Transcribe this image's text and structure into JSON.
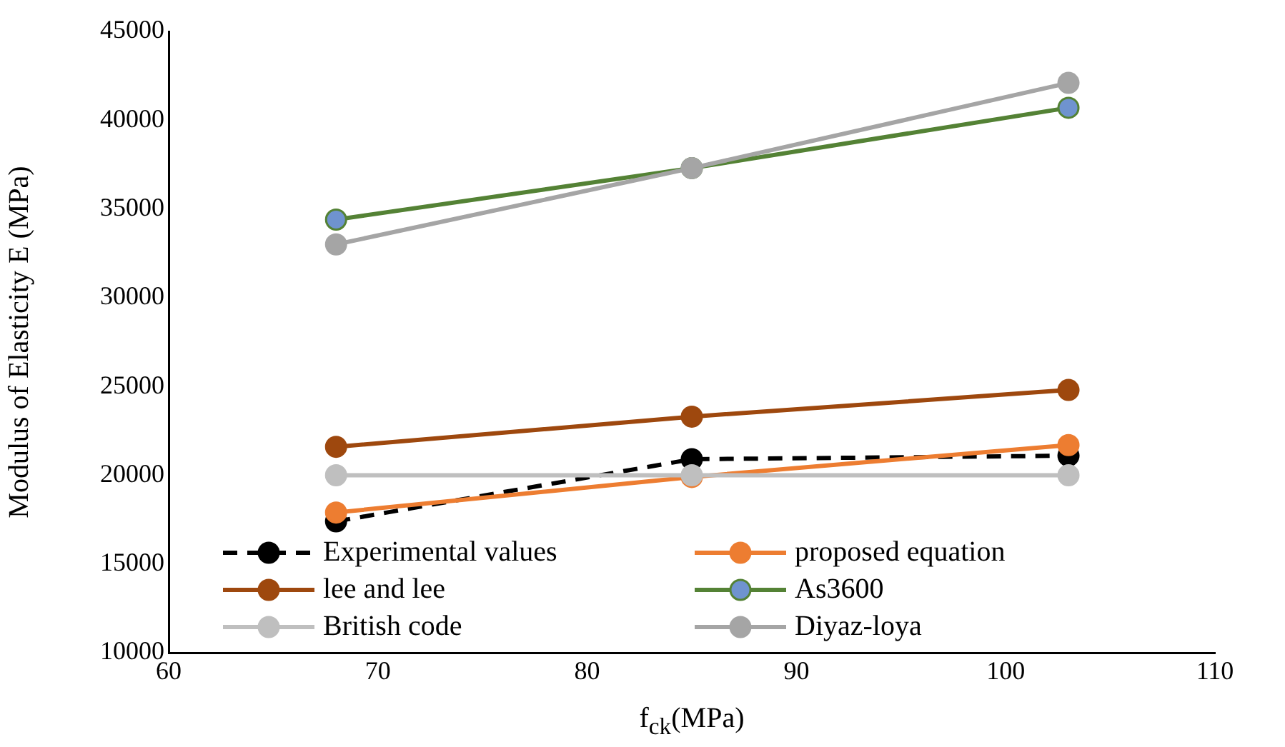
{
  "chart_data": {
    "type": "line",
    "xlabel": "f$_{ck}$(MPa)",
    "ylabel": "Modulus of Elasticity E (MPa)",
    "x": [
      68,
      85,
      103
    ],
    "series": [
      {
        "name": "Experimental values",
        "color": "#000000",
        "line_style": "dashed",
        "values": [
          17400,
          20900,
          21100
        ]
      },
      {
        "name": "proposed equation",
        "color": "#ed7d31",
        "values": [
          17900,
          19900,
          21700
        ]
      },
      {
        "name": "lee and lee",
        "color": "#9e480e",
        "values": [
          21600,
          23300,
          24800
        ]
      },
      {
        "name": "As3600",
        "color": "#548235",
        "colors": [
          "#6f93cf",
          "#6f93cf",
          "#6f93cf"
        ],
        "values": [
          34400,
          37300,
          40700
        ]
      },
      {
        "name": "British code",
        "color": "#bfbfbf",
        "values": [
          20000,
          20000,
          20000
        ]
      },
      {
        "name": "Diyaz-loya",
        "color": "#a5a5a5",
        "values": [
          33000,
          37300,
          42100
        ]
      }
    ],
    "xlim": [
      60,
      110
    ],
    "xticks": [
      60,
      70,
      80,
      90,
      100,
      110
    ],
    "ylim": [
      10000,
      45000
    ],
    "yticks": [
      10000,
      15000,
      20000,
      25000,
      30000,
      35000,
      40000,
      45000
    ],
    "grid": false,
    "legend": "bottom",
    "marker": "circle",
    "line_style": "solid"
  }
}
